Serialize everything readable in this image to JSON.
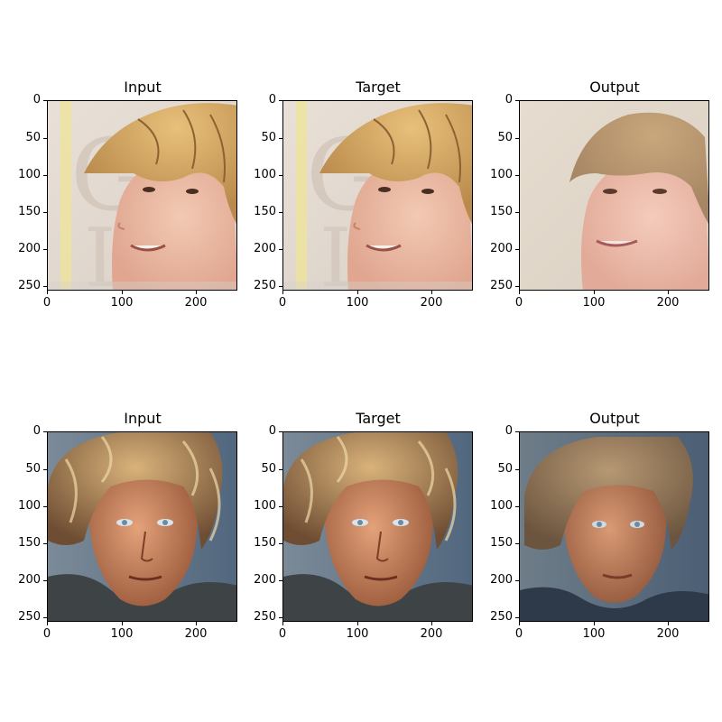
{
  "axes": {
    "yticks": [
      "0",
      "50",
      "100",
      "150",
      "200",
      "250"
    ],
    "xticks": [
      "0",
      "100",
      "200"
    ]
  },
  "rows": [
    {
      "panels": [
        {
          "title": "Input",
          "image": "blond-curly-young-man-smiling-profile-yellow-stripe-background"
        },
        {
          "title": "Target",
          "image": "blond-curly-young-man-smiling-profile-yellow-stripe-background"
        },
        {
          "title": "Output",
          "image": "smooth-reconstructed-blond-young-man-smiling"
        }
      ]
    },
    {
      "panels": [
        {
          "title": "Input",
          "image": "tanned-man-curly-blond-hair-blue-eyes"
        },
        {
          "title": "Target",
          "image": "tanned-man-curly-blond-hair-blue-eyes"
        },
        {
          "title": "Output",
          "image": "smooth-reconstructed-tanned-man-curly-hair"
        }
      ]
    }
  ]
}
